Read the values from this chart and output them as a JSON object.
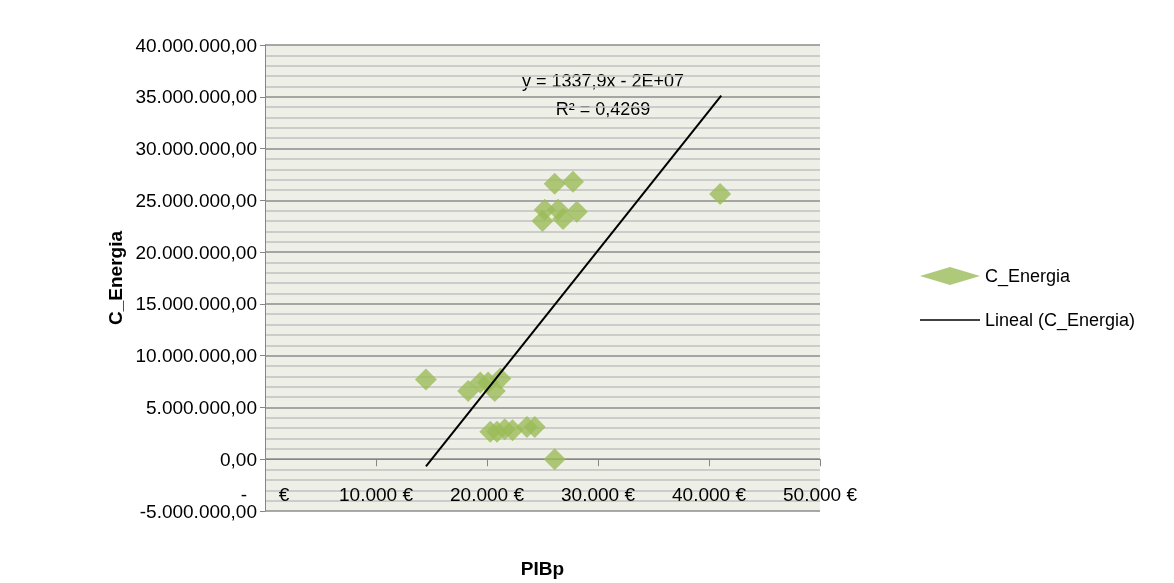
{
  "chart_data": {
    "type": "scatter",
    "xlabel": "PIBp",
    "ylabel": "C_Energia",
    "annotations": [
      "y = 1337,9x - 2E+07",
      "R² = 0,4269"
    ],
    "series": [
      {
        "name": "C_Energia",
        "color": "#9bbb59",
        "marker": "diamond",
        "x": [
          14500,
          26100,
          27750,
          25200,
          26400,
          28100,
          25000,
          26850,
          41000,
          18300,
          19400,
          20100,
          21200,
          20700,
          20300,
          20900,
          21600,
          22300,
          23600,
          24300,
          26100
        ],
        "values": [
          7700000,
          26600000,
          26800000,
          24100000,
          24100000,
          23900000,
          23000000,
          23200000,
          25600000,
          6600000,
          7400000,
          7400000,
          7800000,
          6600000,
          2650000,
          2650000,
          2900000,
          2800000,
          3100000,
          3100000,
          0
        ]
      },
      {
        "name": "Lineal (C_Energia)",
        "type": "line",
        "color": "#000000",
        "marker": "none",
        "line_style": "solid",
        "x": [
          14500,
          41100
        ],
        "values": [
          -700000,
          35100000
        ]
      }
    ],
    "xlim": [
      0,
      50000
    ],
    "xticks": [
      {
        "value": 0,
        "label": "-      €"
      },
      {
        "value": 10000,
        "label": "10.000 €"
      },
      {
        "value": 20000,
        "label": "20.000 €"
      },
      {
        "value": 30000,
        "label": "30.000 €"
      },
      {
        "value": 40000,
        "label": "40.000 €"
      },
      {
        "value": 50000,
        "label": "50.000 €"
      }
    ],
    "ylim": [
      -5000000,
      40000000
    ],
    "yticks": [
      {
        "value": -5000000,
        "label": "-5.000.000,00"
      },
      {
        "value": 0,
        "label": "0,00"
      },
      {
        "value": 5000000,
        "label": "5.000.000,00"
      },
      {
        "value": 10000000,
        "label": "10.000.000,00"
      },
      {
        "value": 15000000,
        "label": "15.000.000,00"
      },
      {
        "value": 20000000,
        "label": "20.000.000,00"
      },
      {
        "value": 25000000,
        "label": "25.000.000,00"
      },
      {
        "value": 30000000,
        "label": "30.000.000,00"
      },
      {
        "value": 35000000,
        "label": "35.000.000,00"
      },
      {
        "value": 40000000,
        "label": "40.000.000,00"
      }
    ],
    "grid": "y",
    "legend": "right"
  }
}
